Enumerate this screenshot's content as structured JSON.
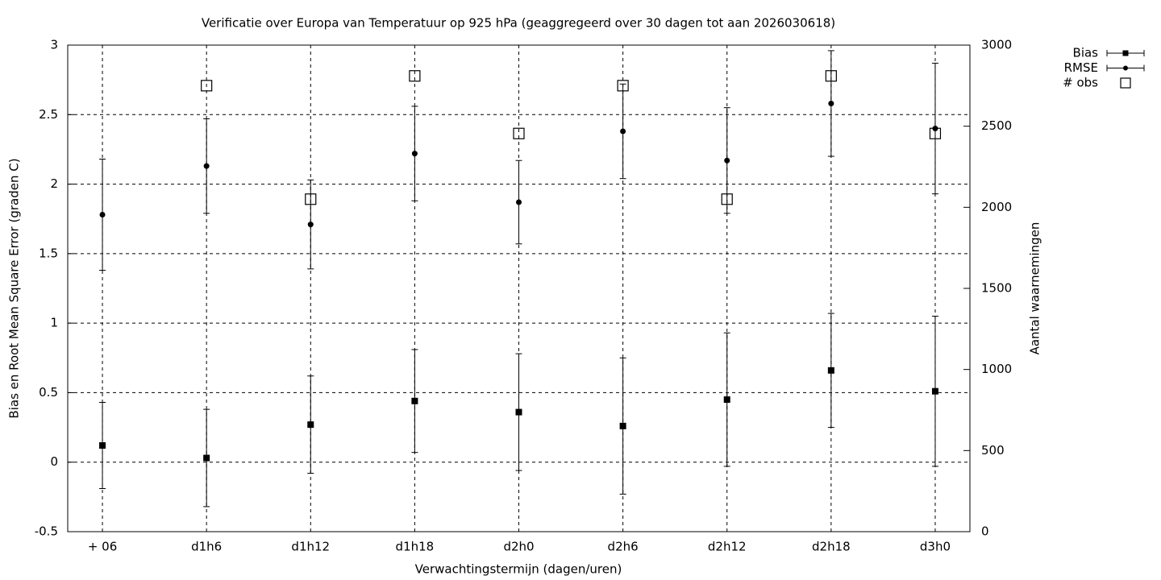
{
  "chart_data": {
    "type": "errorbar",
    "title": "Verificatie over Europa van Temperatuur op 925 hPa (geaggregeerd over 30 dagen tot aan 2026030618)",
    "xlabel": "Verwachtingstermijn (dagen/uren)",
    "ylabel": "Bias en Root Mean Square Error (graden C)",
    "y2label": "Aantal waarnemingen",
    "categories": [
      "+ 06",
      "d1h6",
      "d1h12",
      "d1h18",
      "d2h0",
      "d2h6",
      "d2h12",
      "d2h18",
      "d3h0"
    ],
    "series": [
      {
        "name": "Bias",
        "color": "#000000",
        "marker": "square",
        "values": [
          0.12,
          0.03,
          0.27,
          0.44,
          0.36,
          0.26,
          0.45,
          0.66,
          0.51
        ],
        "errors": [
          0.31,
          0.35,
          0.35,
          0.37,
          0.42,
          0.49,
          0.48,
          0.41,
          0.54
        ]
      },
      {
        "name": "RMSE",
        "color": "#000000",
        "marker": "circle",
        "values": [
          1.78,
          2.13,
          1.71,
          2.22,
          1.87,
          2.38,
          2.17,
          2.58,
          2.4
        ],
        "errors": [
          0.4,
          0.34,
          0.32,
          0.34,
          0.3,
          0.34,
          0.38,
          0.38,
          0.47
        ]
      },
      {
        "name": "# obs",
        "color": "#000000",
        "marker": "open-square",
        "axis": "y2",
        "values": [
          null,
          2750,
          2050,
          2810,
          2455,
          2750,
          2050,
          2810,
          2455
        ]
      }
    ],
    "ylim": [
      -0.5,
      3
    ],
    "yticks": [
      -0.5,
      0,
      0.5,
      1,
      1.5,
      2,
      2.5,
      3
    ],
    "y2lim": [
      0,
      3000
    ],
    "y2ticks": [
      0,
      500,
      1000,
      1500,
      2000,
      2500,
      3000
    ],
    "grid": true,
    "legend": "outside-top-right"
  }
}
